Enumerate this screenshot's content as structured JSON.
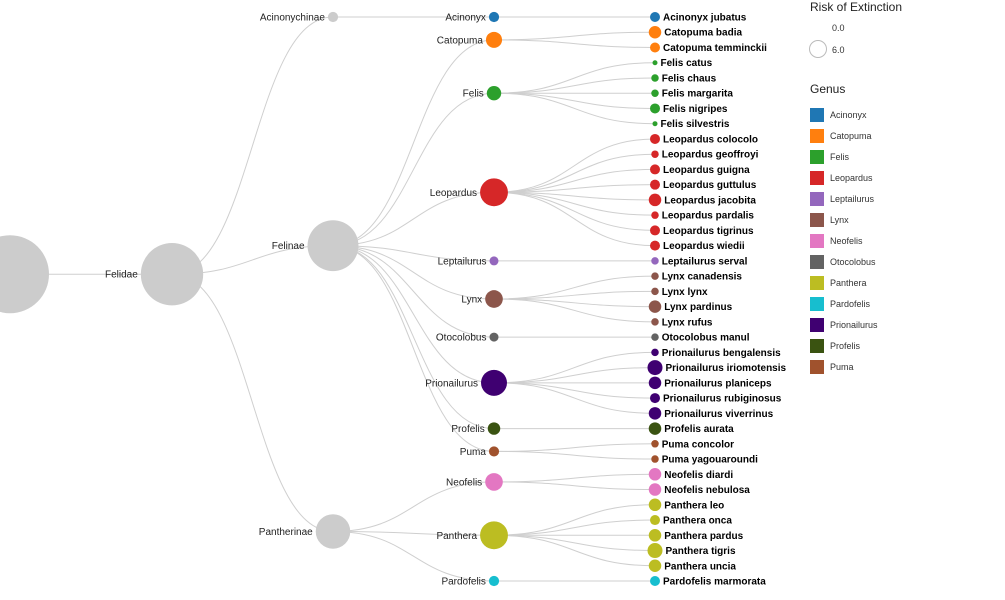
{
  "tree": {
    "name": "Felidae",
    "children": [
      {
        "name": "Acinonychinae",
        "children": [
          {
            "name": "Acinonyx",
            "genus": "Acinonyx",
            "children": [
              {
                "name": "Acinonyx jubatus",
                "risk": 2
              }
            ]
          }
        ]
      },
      {
        "name": "Felinae",
        "children": [
          {
            "name": "Catopuma",
            "genus": "Catopuma",
            "children": [
              {
                "name": "Catopuma badia",
                "risk": 3
              },
              {
                "name": "Catopuma temminckii",
                "risk": 2
              }
            ]
          },
          {
            "name": "Felis",
            "genus": "Felis",
            "children": [
              {
                "name": "Felis catus",
                "risk": 0
              },
              {
                "name": "Felis chaus",
                "risk": 1
              },
              {
                "name": "Felis margarita",
                "risk": 1
              },
              {
                "name": "Felis nigripes",
                "risk": 2
              },
              {
                "name": "Felis silvestris",
                "risk": 0
              }
            ]
          },
          {
            "name": "Leopardus",
            "genus": "Leopardus",
            "children": [
              {
                "name": "Leopardus colocolo",
                "risk": 2
              },
              {
                "name": "Leopardus geoffroyi",
                "risk": 1
              },
              {
                "name": "Leopardus guigna",
                "risk": 2
              },
              {
                "name": "Leopardus guttulus",
                "risk": 2
              },
              {
                "name": "Leopardus jacobita",
                "risk": 3
              },
              {
                "name": "Leopardus pardalis",
                "risk": 1
              },
              {
                "name": "Leopardus tigrinus",
                "risk": 2
              },
              {
                "name": "Leopardus wiedii",
                "risk": 2
              }
            ]
          },
          {
            "name": "Leptailurus",
            "genus": "Leptailurus",
            "children": [
              {
                "name": "Leptailurus serval",
                "risk": 1
              }
            ]
          },
          {
            "name": "Lynx",
            "genus": "Lynx",
            "children": [
              {
                "name": "Lynx canadensis",
                "risk": 1
              },
              {
                "name": "Lynx lynx",
                "risk": 1
              },
              {
                "name": "Lynx pardinus",
                "risk": 3
              },
              {
                "name": "Lynx rufus",
                "risk": 1
              }
            ]
          },
          {
            "name": "Otocolobus",
            "genus": "Otocolobus",
            "children": [
              {
                "name": "Otocolobus manul",
                "risk": 1
              }
            ]
          },
          {
            "name": "Prionailurus",
            "genus": "Prionailurus",
            "children": [
              {
                "name": "Prionailurus bengalensis",
                "risk": 1
              },
              {
                "name": "Prionailurus iriomotensis",
                "risk": 4
              },
              {
                "name": "Prionailurus planiceps",
                "risk": 3
              },
              {
                "name": "Prionailurus rubiginosus",
                "risk": 2
              },
              {
                "name": "Prionailurus viverrinus",
                "risk": 3
              }
            ]
          },
          {
            "name": "Profelis",
            "genus": "Profelis",
            "children": [
              {
                "name": "Profelis aurata",
                "risk": 3
              }
            ]
          },
          {
            "name": "Puma",
            "genus": "Puma",
            "children": [
              {
                "name": "Puma concolor",
                "risk": 1
              },
              {
                "name": "Puma yagouaroundi",
                "risk": 1
              }
            ]
          }
        ]
      },
      {
        "name": "Pantherinae",
        "children": [
          {
            "name": "Neofelis",
            "genus": "Neofelis",
            "children": [
              {
                "name": "Neofelis diardi",
                "risk": 3
              },
              {
                "name": "Neofelis nebulosa",
                "risk": 3
              }
            ]
          },
          {
            "name": "Panthera",
            "genus": "Panthera",
            "children": [
              {
                "name": "Panthera leo",
                "risk": 3
              },
              {
                "name": "Panthera onca",
                "risk": 2
              },
              {
                "name": "Panthera pardus",
                "risk": 3
              },
              {
                "name": "Panthera tigris",
                "risk": 4
              },
              {
                "name": "Panthera uncia",
                "risk": 3
              }
            ]
          },
          {
            "name": "Pardofelis",
            "genus": "Pardofelis",
            "children": [
              {
                "name": "Pardofelis marmorata",
                "risk": 2
              }
            ]
          }
        ]
      }
    ]
  },
  "legend": {
    "size_title": "Risk of Extinction",
    "size_min_label": "0.0",
    "size_max_label": "6.0",
    "genus_title": "Genus",
    "genera": [
      {
        "name": "Acinonyx",
        "color": "#1f77b4"
      },
      {
        "name": "Catopuma",
        "color": "#ff7f0e"
      },
      {
        "name": "Felis",
        "color": "#2ca02c"
      },
      {
        "name": "Leopardus",
        "color": "#d62728"
      },
      {
        "name": "Leptailurus",
        "color": "#9467bd"
      },
      {
        "name": "Lynx",
        "color": "#8c564b"
      },
      {
        "name": "Neofelis",
        "color": "#e377c2"
      },
      {
        "name": "Otocolobus",
        "color": "#636363"
      },
      {
        "name": "Panthera",
        "color": "#bcbd22"
      },
      {
        "name": "Pardofelis",
        "color": "#17becf"
      },
      {
        "name": "Prionailurus",
        "color": "#3f0071"
      },
      {
        "name": "Profelis",
        "color": "#3a5311"
      },
      {
        "name": "Puma",
        "color": "#a0522d"
      }
    ],
    "internal_color": "#cccccc"
  }
}
